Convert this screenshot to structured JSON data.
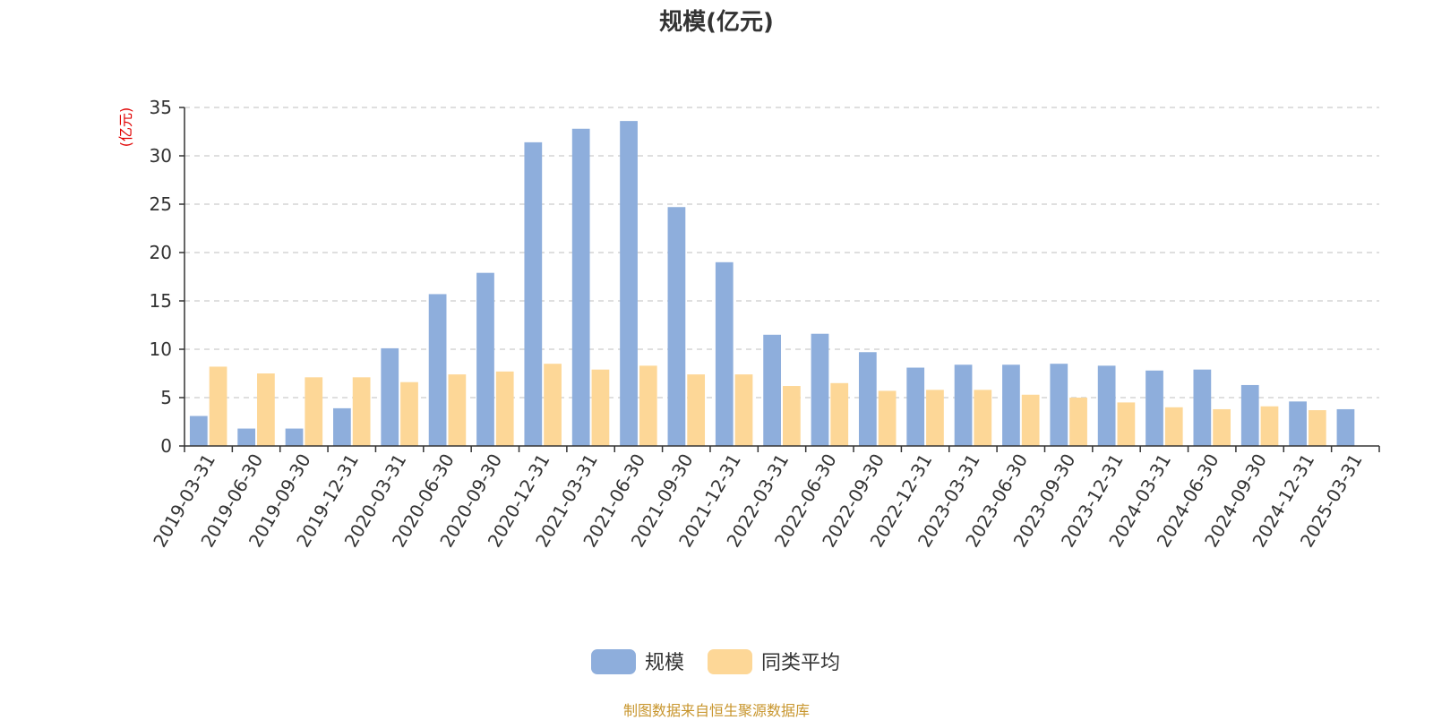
{
  "chart_data": {
    "type": "bar",
    "title": "规模(亿元)",
    "ylabel": "(亿元)",
    "xlabel": "",
    "ylim": [
      0,
      35
    ],
    "yticks": [
      0,
      5,
      10,
      15,
      20,
      25,
      30,
      35
    ],
    "grid": true,
    "legend_position": "bottom",
    "categories": [
      "2019-03-31",
      "2019-06-30",
      "2019-09-30",
      "2019-12-31",
      "2020-03-31",
      "2020-06-30",
      "2020-09-30",
      "2020-12-31",
      "2021-03-31",
      "2021-06-30",
      "2021-09-30",
      "2021-12-31",
      "2022-03-31",
      "2022-06-30",
      "2022-09-30",
      "2022-12-31",
      "2023-03-31",
      "2023-06-30",
      "2023-09-30",
      "2023-12-31",
      "2024-03-31",
      "2024-06-30",
      "2024-09-30",
      "2024-12-31",
      "2025-03-31"
    ],
    "series": [
      {
        "name": "规模",
        "color": "#8eaedc",
        "values": [
          3.1,
          1.8,
          1.8,
          3.9,
          10.1,
          15.7,
          17.9,
          31.4,
          32.8,
          33.6,
          24.7,
          19.0,
          11.5,
          11.6,
          9.7,
          8.1,
          8.4,
          8.4,
          8.5,
          8.3,
          7.8,
          7.9,
          6.3,
          4.6,
          3.8
        ]
      },
      {
        "name": "同类平均",
        "color": "#fdd797",
        "values": [
          8.2,
          7.5,
          7.1,
          7.1,
          6.6,
          7.4,
          7.7,
          8.5,
          7.9,
          8.3,
          7.4,
          7.4,
          6.2,
          6.5,
          5.7,
          5.8,
          5.8,
          5.3,
          5.0,
          4.5,
          4.0,
          3.8,
          4.1,
          3.7,
          null
        ]
      }
    ]
  },
  "source_note": "制图数据来自恒生聚源数据库"
}
